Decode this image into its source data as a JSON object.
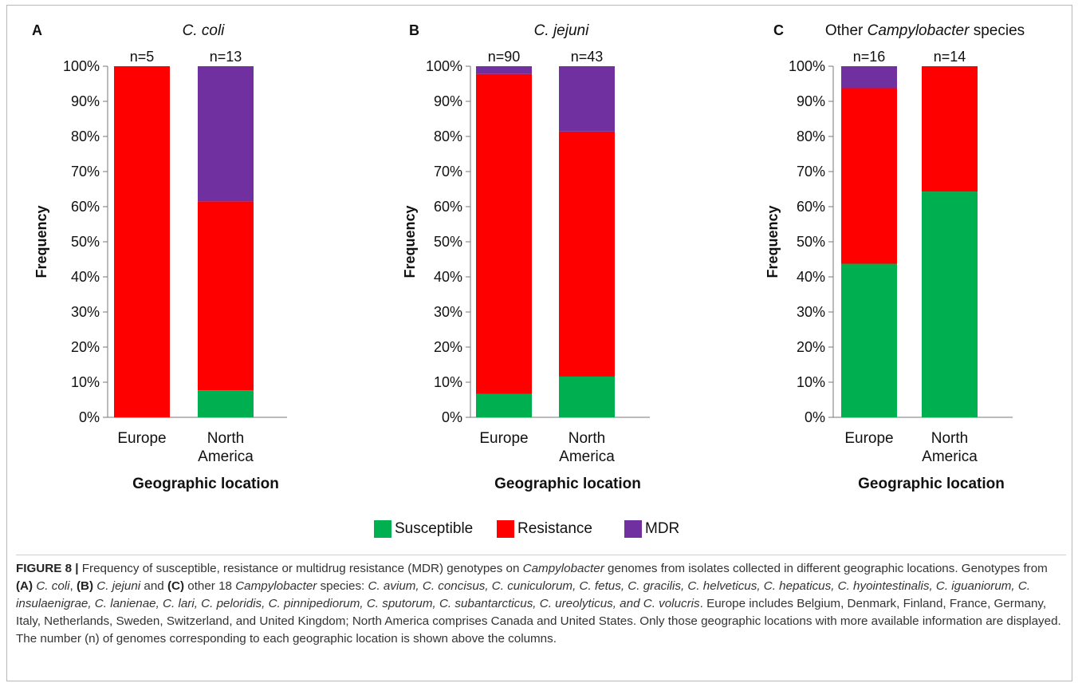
{
  "legend": {
    "susceptible": "Susceptible",
    "resistance": "Resistance",
    "mdr": "MDR"
  },
  "colors": {
    "susceptible": "#00b050",
    "resistance": "#ff0000",
    "mdr": "#7030a0"
  },
  "chart_data": [
    {
      "type": "bar",
      "stacked": true,
      "panel_letter": "A",
      "title": "C. coli",
      "xlabel": "Geographic location",
      "ylabel": "Frequency",
      "ylim": [
        0,
        100
      ],
      "yticks": [
        "0%",
        "10%",
        "20%",
        "30%",
        "40%",
        "50%",
        "60%",
        "70%",
        "80%",
        "90%",
        "100%"
      ],
      "categories": [
        [
          "Europe"
        ],
        [
          "North",
          "America"
        ]
      ],
      "n_labels": [
        "n=5",
        "n=13"
      ],
      "series": [
        {
          "name": "Susceptible",
          "values": [
            0,
            7.7
          ]
        },
        {
          "name": "Resistance",
          "values": [
            100,
            53.8
          ]
        },
        {
          "name": "MDR",
          "values": [
            0,
            38.5
          ]
        }
      ]
    },
    {
      "type": "bar",
      "stacked": true,
      "panel_letter": "B",
      "title": "C. jejuni",
      "xlabel": "Geographic location",
      "ylabel": "Frequency",
      "ylim": [
        0,
        100
      ],
      "yticks": [
        "0%",
        "10%",
        "20%",
        "30%",
        "40%",
        "50%",
        "60%",
        "70%",
        "80%",
        "90%",
        "100%"
      ],
      "categories": [
        [
          "Europe"
        ],
        [
          "North",
          "America"
        ]
      ],
      "n_labels": [
        "n=90",
        "n=43"
      ],
      "series": [
        {
          "name": "Susceptible",
          "values": [
            6.7,
            11.6
          ]
        },
        {
          "name": "Resistance",
          "values": [
            91.1,
            69.8
          ]
        },
        {
          "name": "MDR",
          "values": [
            2.2,
            18.6
          ]
        }
      ]
    },
    {
      "type": "bar",
      "stacked": true,
      "panel_letter": "C",
      "title_plain": "Other ",
      "title_italic": "Campylobacter",
      "title_tail": " species",
      "xlabel": "Geographic location",
      "ylabel": "Frequency",
      "ylim": [
        0,
        100
      ],
      "yticks": [
        "0%",
        "10%",
        "20%",
        "30%",
        "40%",
        "50%",
        "60%",
        "70%",
        "80%",
        "90%",
        "100%"
      ],
      "categories": [
        [
          "Europe"
        ],
        [
          "North",
          "America"
        ]
      ],
      "n_labels": [
        "n=16",
        "n=14"
      ],
      "series": [
        {
          "name": "Susceptible",
          "values": [
            43.75,
            64.3
          ]
        },
        {
          "name": "Resistance",
          "values": [
            50,
            35.7
          ]
        },
        {
          "name": "MDR",
          "values": [
            6.25,
            0
          ]
        }
      ]
    }
  ],
  "caption": {
    "fig_label": "FIGURE 8 |",
    "s1": " Frequency of susceptible, resistance or multidrug resistance (MDR) genotypes on ",
    "s1_italic": "Campylobacter",
    "s2": " genomes from isolates collected in different geographic locations. Genotypes from ",
    "refA": "(A)",
    "spA": " C. coli",
    "s3": ", ",
    "refB": "(B)",
    "spB": " C. jejuni",
    "s4": " and ",
    "refC": "(C)",
    "s5": " other 18 ",
    "s5_italic": "Campylobacter",
    "s6": " species: ",
    "species": "C. avium, C. concisus, C. cuniculorum, C. fetus, C. gracilis, C. helveticus, C. hepaticus, C. hyointestinalis, C. iguaniorum, C. insulaenigrae, C. lanienae, C. lari, C. peloridis, C. pinnipediorum, C. sputorum, C. subantarcticus, C. ureolyticus, and C. volucris",
    "s7": ". Europe includes Belgium, Denmark, Finland, France, Germany, Italy, Netherlands, Sweden, Switzerland, and United Kingdom; North America comprises Canada and United States. Only those geographic locations with more available information are displayed. The number (n) of genomes corresponding to each geographic location is shown above the columns."
  }
}
